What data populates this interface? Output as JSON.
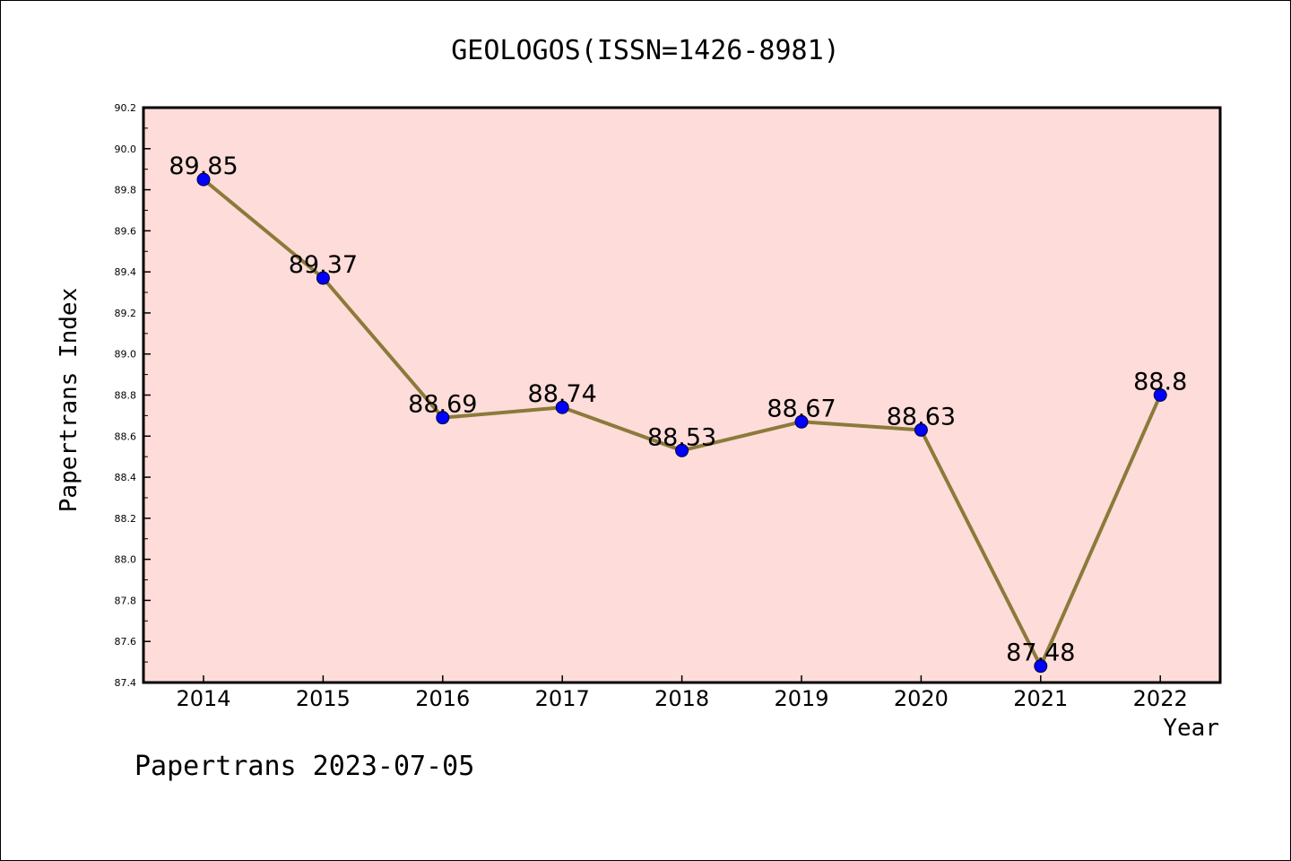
{
  "chart_data": {
    "type": "line",
    "title": "GEOLOGOS(ISSN=1426-8981)",
    "xlabel": "Year",
    "ylabel": "Papertrans Index",
    "categories": [
      "2014",
      "2015",
      "2016",
      "2017",
      "2018",
      "2019",
      "2020",
      "2021",
      "2022"
    ],
    "values": [
      89.85,
      89.37,
      88.69,
      88.74,
      88.53,
      88.67,
      88.63,
      87.48,
      88.8
    ],
    "data_labels": [
      "89.85",
      "89.37",
      "88.69",
      "88.74",
      "88.53",
      "88.67",
      "88.63",
      "87.48",
      "88.8"
    ],
    "ylim": [
      87.4,
      90.2
    ],
    "yticks": [
      "87.4",
      "87.6",
      "87.8",
      "88.0",
      "88.2",
      "88.4",
      "88.6",
      "88.8",
      "89.0",
      "89.2",
      "89.4",
      "89.6",
      "89.8",
      "90.0",
      "90.2"
    ],
    "grid": false,
    "colors": {
      "plot_background": "#fddcd9",
      "line": "#8b7a3a",
      "marker": "#0000ff",
      "axis": "#000000"
    }
  },
  "footer": {
    "watermark": "Papertrans 2023-07-05"
  }
}
